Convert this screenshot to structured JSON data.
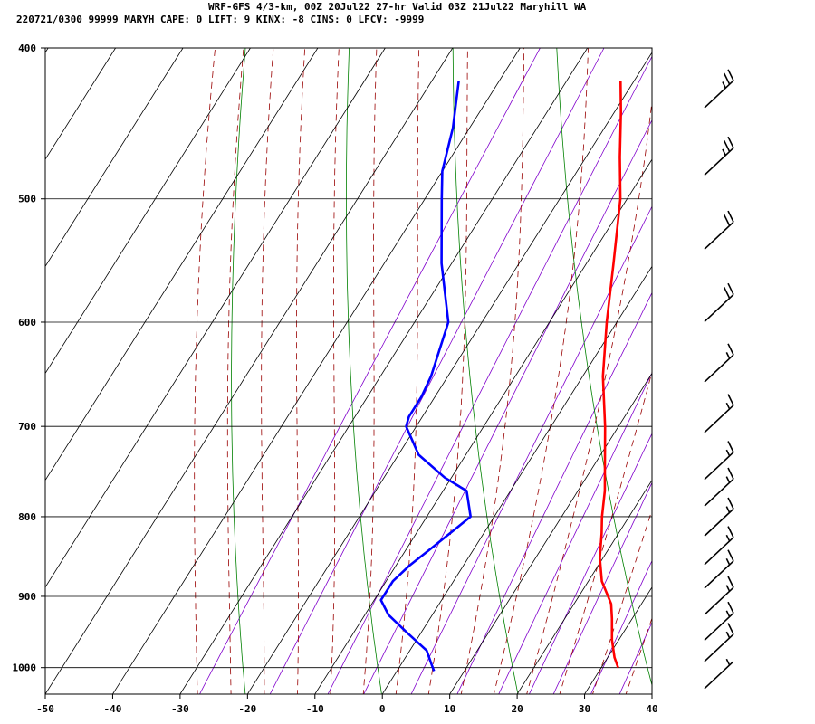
{
  "header": {
    "line1": "WRF-GFS 4/3-km, 00Z 20Jul22 27-hr Valid 03Z 21Jul22 Maryhill WA",
    "line2": "220721/0300 99999  MARYH   CAPE:     0 LIFT:     9 KINX:    -8 CINS:     0 LFCV: -9999"
  },
  "colors": {
    "temperature": "#ff0000",
    "dewpoint": "#0000ff",
    "isotherm": "#000000",
    "dry_adiabat": "#008000",
    "moist_adiabat": "#990000",
    "mixing_ratio": "#8000cc",
    "wind_barb": "#000000"
  },
  "chart_data": {
    "type": "line",
    "subtype": "skew-T log-P sounding",
    "x_axis": {
      "ticks": [
        "-50",
        "-40",
        "-30",
        "-20",
        "-10",
        "0",
        "10",
        "20",
        "30",
        "40"
      ],
      "range": [
        -50,
        40
      ],
      "units": "degC"
    },
    "y_axis": {
      "ticks": [
        "400",
        "500",
        "600",
        "700",
        "800",
        "900",
        "1000"
      ],
      "range": [
        400,
        1040
      ],
      "scale": "log",
      "units": "hPa"
    },
    "grid": true,
    "series": [
      {
        "key": "temperature",
        "points": [
          [
            1000,
            32.5
          ],
          [
            985,
            31.0
          ],
          [
            960,
            29.0
          ],
          [
            930,
            27.0
          ],
          [
            910,
            25.5
          ],
          [
            880,
            22.0
          ],
          [
            850,
            19.5
          ],
          [
            820,
            17.5
          ],
          [
            800,
            16.0
          ],
          [
            770,
            14.0
          ],
          [
            740,
            11.5
          ],
          [
            700,
            8.0
          ],
          [
            650,
            3.0
          ],
          [
            600,
            -1.5
          ],
          [
            550,
            -6.0
          ],
          [
            500,
            -11.0
          ],
          [
            470,
            -15.0
          ],
          [
            440,
            -19.0
          ],
          [
            420,
            -22.0
          ]
        ]
      },
      {
        "key": "dewpoint",
        "points": [
          [
            1005,
            5.5
          ],
          [
            995,
            4.5
          ],
          [
            975,
            2.5
          ],
          [
            950,
            -2.0
          ],
          [
            925,
            -6.5
          ],
          [
            905,
            -9.0
          ],
          [
            880,
            -9.0
          ],
          [
            860,
            -8.0
          ],
          [
            840,
            -6.5
          ],
          [
            800,
            -3.5
          ],
          [
            770,
            -6.5
          ],
          [
            755,
            -11.0
          ],
          [
            730,
            -17.0
          ],
          [
            700,
            -21.5
          ],
          [
            690,
            -22.0
          ],
          [
            670,
            -22.0
          ],
          [
            650,
            -22.5
          ],
          [
            600,
            -25.0
          ],
          [
            550,
            -31.5
          ],
          [
            500,
            -37.5
          ],
          [
            480,
            -40.0
          ],
          [
            450,
            -42.5
          ],
          [
            420,
            -46.0
          ]
        ]
      }
    ],
    "wind_barbs": [
      {
        "p": 430,
        "kt": 25
      },
      {
        "p": 475,
        "kt": 25
      },
      {
        "p": 530,
        "kt": 20
      },
      {
        "p": 590,
        "kt": 20
      },
      {
        "p": 645,
        "kt": 15
      },
      {
        "p": 695,
        "kt": 15
      },
      {
        "p": 745,
        "kt": 15
      },
      {
        "p": 775,
        "kt": 15
      },
      {
        "p": 810,
        "kt": 15
      },
      {
        "p": 845,
        "kt": 15
      },
      {
        "p": 875,
        "kt": 15
      },
      {
        "p": 910,
        "kt": 15
      },
      {
        "p": 945,
        "kt": 15
      },
      {
        "p": 975,
        "kt": 15
      },
      {
        "p": 1015,
        "kt": 5
      }
    ]
  }
}
